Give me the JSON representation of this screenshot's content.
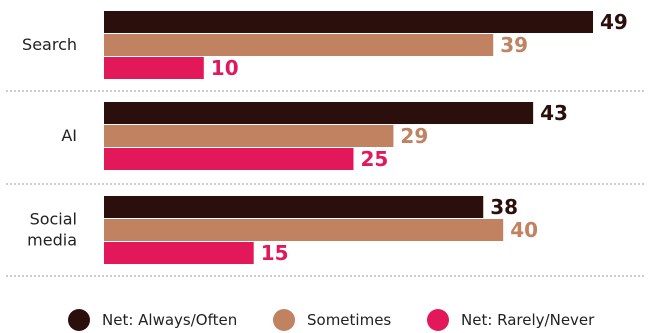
{
  "chart_data": {
    "type": "bar",
    "orientation": "horizontal",
    "categories": [
      "Search",
      "AI",
      "Social media"
    ],
    "series": [
      {
        "name": "Net: Always/Often",
        "color": "#2b0f0c",
        "values": [
          49,
          43,
          38
        ]
      },
      {
        "name": "Sometimes",
        "color": "#c08260",
        "values": [
          39,
          29,
          40
        ]
      },
      {
        "name": "Net: Rarely/Never",
        "color": "#e2185b",
        "values": [
          10,
          25,
          15
        ]
      }
    ],
    "xlim": [
      0,
      50
    ],
    "grid": false,
    "legend_position": "bottom"
  }
}
